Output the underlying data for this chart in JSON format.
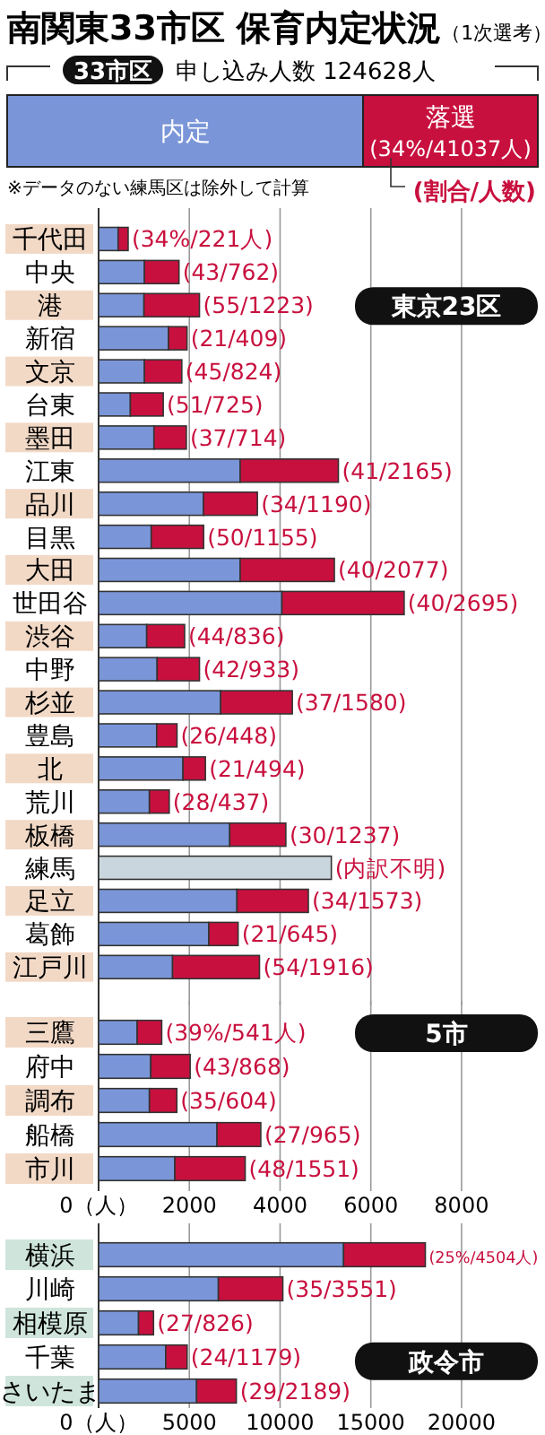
{
  "chart_data": [
    {
      "type": "bar",
      "orientation": "horizontal",
      "stacked": true,
      "title": "南関東33市区 保育内定状況",
      "subtitle": "（1次選考）",
      "categories": [
        "33市区"
      ],
      "xlim": [
        0,
        124628
      ],
      "tick_labels": "y",
      "annotations": [
        "申し込み人数 124628人",
        "※データのない練馬区は除外して計算",
        "(割合/人数)"
      ],
      "series": [
        {
          "name": "内定",
          "color": "#7b96d8",
          "values": [
            83591
          ]
        },
        {
          "name": "落選",
          "color": "#c8103e",
          "values": [
            41037
          ],
          "value_labels": [
            "(34%/41037人)"
          ]
        }
      ]
    },
    {
      "type": "bar",
      "orientation": "horizontal",
      "stacked": true,
      "categories": [
        "千代田",
        "中央",
        "港",
        "新宿",
        "文京",
        "台東",
        "墨田",
        "江東",
        "品川",
        "目黒",
        "大田",
        "世田谷",
        "渋谷",
        "中野",
        "杉並",
        "豊島",
        "北",
        "荒川",
        "板橋",
        "練馬",
        "足立",
        "葛飾",
        "江戸川"
      ],
      "xlim": [
        0,
        9800
      ],
      "xticks": [
        0,
        2000,
        4000,
        6000,
        8000
      ],
      "tick_labels": "y",
      "grid": "x",
      "annotations": [
        "東京23区"
      ],
      "series": [
        {
          "color": "#7b96d8",
          "values": [
            430,
            1010,
            1000,
            1540,
            1010,
            700,
            1220,
            3120,
            2310,
            1160,
            3120,
            4040,
            1060,
            1290,
            2690,
            1280,
            1860,
            1120,
            2890,
            null,
            3050,
            2430,
            1630
          ]
        },
        {
          "color": "#c8103e",
          "values": [
            221,
            762,
            1223,
            409,
            824,
            725,
            714,
            2165,
            1190,
            1155,
            2077,
            2695,
            836,
            933,
            1580,
            448,
            494,
            437,
            1237,
            null,
            1573,
            645,
            1916
          ],
          "value_labels": [
            "(34%/221人)",
            "(43/762)",
            "(55/1223)",
            "(21/409)",
            "(45/824)",
            "(51/725)",
            "(37/714)",
            "(41/2165)",
            "(34/1190)",
            "(50/1155)",
            "(40/2077)",
            "(40/2695)",
            "(44/836)",
            "(42/933)",
            "(37/1580)",
            "(26/448)",
            "(21/494)",
            "(28/437)",
            "(30/1237)",
            null,
            "(34/1573)",
            "(21/645)",
            "(54/1916)"
          ]
        },
        {
          "color": "#c9d6de",
          "values": [
            null,
            null,
            null,
            null,
            null,
            null,
            null,
            null,
            null,
            null,
            null,
            null,
            null,
            null,
            null,
            null,
            null,
            null,
            null,
            5130,
            null,
            null,
            null
          ],
          "value_labels": [
            null,
            null,
            null,
            null,
            null,
            null,
            null,
            null,
            null,
            null,
            null,
            null,
            null,
            null,
            null,
            null,
            null,
            null,
            null,
            "(内訳不明)",
            null,
            null,
            null
          ]
        }
      ]
    },
    {
      "type": "bar",
      "orientation": "horizontal",
      "stacked": true,
      "categories": [
        "三鷹",
        "府中",
        "調布",
        "船橋",
        "市川"
      ],
      "xlim": [
        0,
        9800
      ],
      "xticks": [
        {
          "value": 0,
          "label": "0（人）"
        },
        2000,
        4000,
        6000,
        8000
      ],
      "grid": "x",
      "annotations": [
        "5市"
      ],
      "series": [
        {
          "color": "#7b96d8",
          "values": [
            850,
            1150,
            1120,
            2610,
            1680
          ]
        },
        {
          "color": "#c8103e",
          "values": [
            541,
            868,
            604,
            965,
            1551
          ],
          "value_labels": [
            "(39%/541人)",
            "(43/868)",
            "(35/604)",
            "(27/965)",
            "(48/1551)"
          ]
        }
      ]
    },
    {
      "type": "bar",
      "orientation": "horizontal",
      "stacked": true,
      "categories": [
        "横浜",
        "川崎",
        "相模原",
        "千葉",
        "さいたま"
      ],
      "xlim": [
        0,
        24500
      ],
      "xticks": [
        {
          "value": 0,
          "label": "0（人）"
        },
        5000,
        10000,
        15000,
        20000
      ],
      "grid": "x",
      "annotations": [
        "政令市"
      ],
      "series": [
        {
          "color": "#7b96d8",
          "values": [
            13500,
            6600,
            2200,
            3700,
            5400
          ]
        },
        {
          "color": "#c8103e",
          "values": [
            4504,
            3551,
            826,
            1179,
            2189
          ],
          "value_labels": [
            "(25%/4504人)",
            "(35/3551)",
            "(27/826)",
            "(24/1179)",
            "(29/2189)"
          ]
        }
      ]
    }
  ]
}
